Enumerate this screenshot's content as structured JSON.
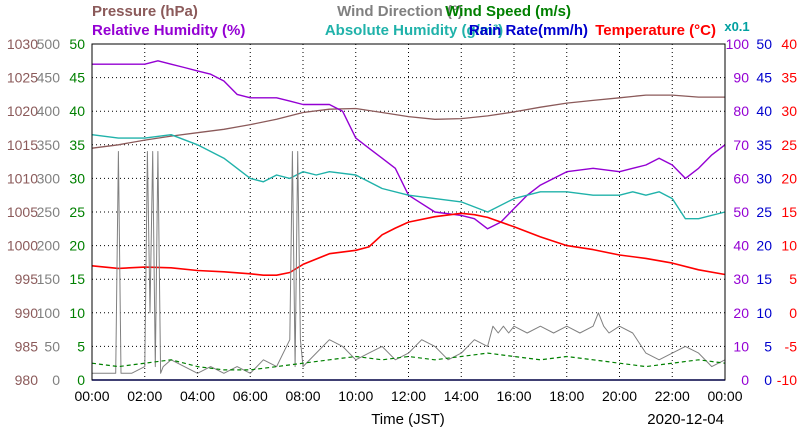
{
  "chart_data": {
    "type": "line",
    "date": "2020-12-04",
    "xlabel": "Time (JST)",
    "x_ticks": [
      "00:00",
      "02:00",
      "04:00",
      "06:00",
      "08:00",
      "10:00",
      "12:00",
      "14:00",
      "16:00",
      "18:00",
      "20:00",
      "22:00",
      "00:00"
    ],
    "xlim_hours": [
      0,
      24
    ],
    "grid": true,
    "legend": [
      {
        "text": "Pressure (hPa)",
        "color": "#8b5a5a"
      },
      {
        "text": "Wind Direction (°)",
        "color": "#808080"
      },
      {
        "text": "Wind Speed (m/s)",
        "color": "#008000"
      },
      {
        "text": "Relative Humidity (%)",
        "color": "#9400d3"
      },
      {
        "text": "Absolute Humidity (g/m³)",
        "color": "#20b2aa"
      },
      {
        "text": "Rain Rate(mm/h)",
        "color": "#0000cd"
      },
      {
        "text": "Temperature (°C)",
        "color": "#ff0000"
      }
    ],
    "rain_note": "x0.1",
    "axes": {
      "pressure": {
        "color": "#8b5a5a",
        "ticks": [
          "980",
          "985",
          "990",
          "995",
          "1000",
          "1005",
          "1010",
          "1015",
          "1020",
          "1025",
          "1030"
        ],
        "range": [
          980,
          1030
        ]
      },
      "wind_direction": {
        "color": "#808080",
        "ticks": [
          "0",
          "50",
          "100",
          "150",
          "200",
          "250",
          "300",
          "350",
          "400",
          "450",
          "500"
        ],
        "range": [
          0,
          500
        ]
      },
      "wind_speed": {
        "color": "#008000",
        "ticks": [
          "0",
          "5",
          "10",
          "15",
          "20",
          "25",
          "30",
          "35",
          "40",
          "45",
          "50"
        ],
        "range": [
          0,
          50
        ]
      },
      "humidity": {
        "color": "#9400d3",
        "ticks": [
          "0",
          "10",
          "20",
          "30",
          "40",
          "50",
          "60",
          "70",
          "80",
          "90",
          "100"
        ],
        "range": [
          0,
          100
        ]
      },
      "rain": {
        "color": "#0000cd",
        "ticks": [
          "0",
          "5",
          "10",
          "15",
          "20",
          "25",
          "30",
          "35",
          "40",
          "45",
          "50"
        ],
        "range": [
          0,
          50
        ]
      },
      "temperature": {
        "color": "#ff0000",
        "ticks": [
          "-10",
          "-5",
          "0",
          "5",
          "10",
          "15",
          "20",
          "25",
          "30",
          "35",
          "40"
        ],
        "range": [
          -10,
          40
        ]
      }
    },
    "series": [
      {
        "name": "Pressure (hPa)",
        "axis": "pressure",
        "color": "#8b5a5a",
        "x": [
          0,
          1,
          2,
          3,
          4,
          5,
          6,
          7,
          8,
          9,
          10,
          11,
          12,
          13,
          14,
          15,
          16,
          17,
          18,
          19,
          20,
          21,
          22,
          23,
          24
        ],
        "y": [
          1014.5,
          1015.0,
          1015.7,
          1016.3,
          1016.8,
          1017.3,
          1018.0,
          1018.8,
          1019.8,
          1020.3,
          1020.4,
          1019.8,
          1019.2,
          1018.8,
          1018.9,
          1019.3,
          1019.9,
          1020.6,
          1021.2,
          1021.6,
          1022.0,
          1022.4,
          1022.4,
          1022.1,
          1022.1
        ]
      },
      {
        "name": "Relative Humidity (%)",
        "axis": "humidity",
        "color": "#9400d3",
        "x": [
          0,
          1,
          2,
          2.5,
          3,
          3.5,
          4,
          4.5,
          5,
          5.5,
          6,
          7,
          7.5,
          8,
          9,
          9.5,
          10,
          10.5,
          11,
          11.5,
          12,
          13,
          14,
          14.5,
          15,
          15.5,
          16,
          16.5,
          17,
          18,
          19,
          20,
          20.5,
          21,
          21.5,
          22,
          22.5,
          23,
          23.5,
          24
        ],
        "y": [
          94,
          94,
          94,
          95,
          94,
          93,
          92,
          91,
          89,
          85,
          84,
          84,
          83,
          82,
          82,
          80,
          72,
          69,
          66,
          63,
          55,
          50,
          49,
          48,
          45,
          47,
          51,
          55,
          58,
          62,
          63,
          62,
          63,
          64,
          66,
          64,
          60,
          63,
          67,
          70
        ]
      },
      {
        "name": "Absolute Humidity (g/m³)",
        "axis": "humidity",
        "color": "#20b2aa",
        "x": [
          0,
          1,
          2,
          3,
          4,
          5,
          6,
          6.5,
          7,
          7.5,
          8,
          8.5,
          9,
          10,
          11,
          12,
          13,
          14,
          15,
          16,
          17,
          18,
          19,
          20,
          20.5,
          21,
          21.5,
          22,
          22.5,
          23,
          24
        ],
        "y": [
          73,
          72,
          72,
          73,
          70,
          66,
          60,
          59,
          61,
          60,
          62,
          61,
          62,
          61,
          57,
          55,
          54,
          53,
          50,
          54,
          56,
          56,
          55,
          55,
          56,
          55,
          56,
          54,
          48,
          48,
          50
        ]
      },
      {
        "name": "Temperature (°C)",
        "axis": "temperature",
        "color": "#ff0000",
        "x": [
          0,
          1,
          2,
          3,
          4,
          5,
          6,
          6.5,
          7,
          7.5,
          8,
          9,
          10,
          10.5,
          11,
          11.5,
          12,
          13,
          14,
          14.5,
          15,
          16,
          17,
          18,
          19,
          20,
          21,
          22,
          23,
          24
        ],
        "y": [
          7.0,
          6.6,
          6.8,
          6.7,
          6.3,
          6.1,
          5.8,
          5.6,
          5.6,
          6.0,
          7.2,
          8.8,
          9.3,
          9.8,
          11.6,
          12.6,
          13.5,
          14.3,
          14.8,
          14.6,
          14.2,
          12.8,
          11.3,
          10.0,
          9.4,
          8.6,
          8.1,
          7.4,
          6.4,
          5.7
        ]
      },
      {
        "name": "Wind Direction (°)",
        "axis": "wind_direction",
        "color": "#808080",
        "x": [
          0,
          0.9,
          1.0,
          1.1,
          1.5,
          2.0,
          2.1,
          2.2,
          2.3,
          2.4,
          2.5,
          2.6,
          2.7,
          3.0,
          3.5,
          4.0,
          4.5,
          5.0,
          5.5,
          6.0,
          6.5,
          7.0,
          7.5,
          7.6,
          7.7,
          7.8,
          7.9,
          8.0,
          8.5,
          9.0,
          9.5,
          10.0,
          10.5,
          11.0,
          11.5,
          12.0,
          12.5,
          13.0,
          13.5,
          14.0,
          14.5,
          15.0,
          15.2,
          15.4,
          15.6,
          15.8,
          16.0,
          16.5,
          17.0,
          17.5,
          18.0,
          18.5,
          19.0,
          19.2,
          19.4,
          19.6,
          20.0,
          20.5,
          21.0,
          21.5,
          22.0,
          22.5,
          23.0,
          23.5,
          24.0
        ],
        "y": [
          10,
          10,
          340,
          10,
          10,
          20,
          340,
          100,
          340,
          20,
          340,
          10,
          20,
          30,
          20,
          10,
          20,
          10,
          20,
          10,
          30,
          20,
          60,
          340,
          20,
          340,
          60,
          20,
          40,
          60,
          50,
          30,
          40,
          50,
          30,
          40,
          60,
          50,
          30,
          40,
          60,
          50,
          80,
          70,
          80,
          70,
          80,
          70,
          80,
          70,
          80,
          70,
          80,
          100,
          80,
          70,
          80,
          70,
          40,
          30,
          40,
          50,
          40,
          20,
          30
        ]
      },
      {
        "name": "Wind Speed (m/s)",
        "axis": "wind_speed",
        "color": "#008000",
        "x": [
          0,
          1,
          2,
          3,
          4,
          5,
          6,
          7,
          8,
          9,
          10,
          11,
          12,
          13,
          14,
          15,
          16,
          17,
          18,
          19,
          20,
          21,
          22,
          23,
          24
        ],
        "y": [
          2.5,
          2.0,
          2.5,
          3.0,
          2.0,
          1.5,
          1.5,
          2.0,
          2.5,
          3.0,
          3.5,
          3.0,
          3.5,
          3.0,
          3.5,
          4.0,
          3.5,
          3.0,
          3.5,
          3.0,
          2.5,
          2.0,
          2.5,
          3.0,
          2.5
        ]
      },
      {
        "name": "Rain Rate(mm/h)",
        "axis": "rain",
        "color": "#0000cd",
        "x": [
          0,
          24
        ],
        "y": [
          0,
          0
        ]
      }
    ]
  }
}
